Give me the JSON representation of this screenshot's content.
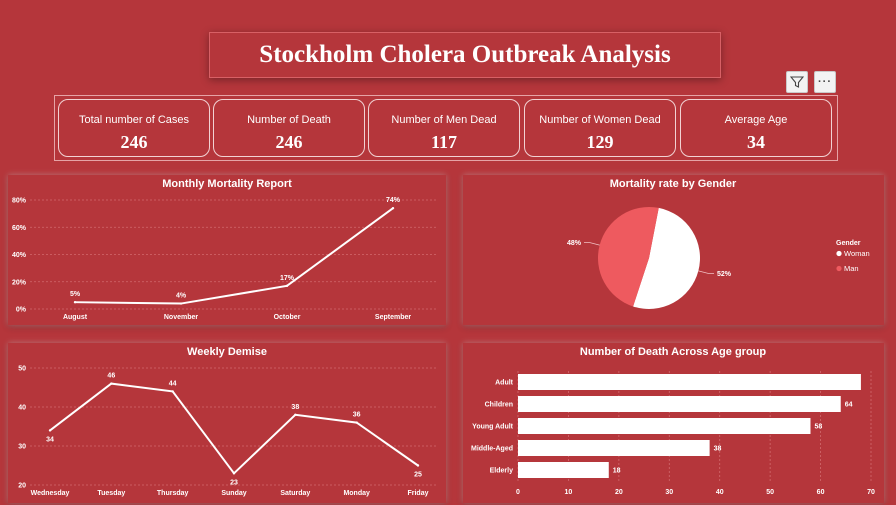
{
  "header": {
    "title": "Stockholm Cholera Outbreak Analysis"
  },
  "toolbar": {
    "filter_icon": "filter-icon",
    "more_icon": "more-options-icon",
    "more_label": "···"
  },
  "kpis": [
    {
      "label": "Total number of Cases",
      "value": "246"
    },
    {
      "label": "Number of Death",
      "value": "246"
    },
    {
      "label": "Number of Men Dead",
      "value": "117"
    },
    {
      "label": "Number of Women Dead",
      "value": "129"
    },
    {
      "label": "Average Age",
      "value": "34"
    }
  ],
  "colors": {
    "background": "#b5363b",
    "line": "#ffffff",
    "woman": "#ffffff",
    "man": "#ee5a5f"
  },
  "chart_data": [
    {
      "type": "line",
      "title": "Monthly Mortality Report",
      "categories": [
        "August",
        "November",
        "October",
        "September"
      ],
      "values": [
        5,
        4,
        17,
        74
      ],
      "labels": [
        "5%",
        "4%",
        "17%",
        "74%"
      ],
      "yticks": [
        "0%",
        "20%",
        "40%",
        "60%",
        "80%"
      ],
      "ylim": [
        0,
        80
      ],
      "grid": true
    },
    {
      "type": "pie",
      "title": "Mortality rate by Gender",
      "legend_title": "Gender",
      "legend_position": "right",
      "categories": [
        "Woman",
        "Man"
      ],
      "values": [
        52,
        48
      ],
      "labels": [
        "52%",
        "48%"
      ]
    },
    {
      "type": "line",
      "title": "Weekly Demise",
      "categories": [
        "Wednesday",
        "Tuesday",
        "Thursday",
        "Sunday",
        "Saturday",
        "Monday",
        "Friday"
      ],
      "values": [
        34,
        46,
        44,
        23,
        38,
        36,
        25
      ],
      "labels": [
        "34",
        "46",
        "44",
        "23",
        "38",
        "36",
        "25"
      ],
      "yticks": [
        "20",
        "30",
        "40",
        "50"
      ],
      "ylim": [
        20,
        50
      ],
      "grid": true
    },
    {
      "type": "bar",
      "orientation": "horizontal",
      "title": "Number of Death Across Age group",
      "categories": [
        "Adult",
        "Children",
        "Young Adult",
        "Middle-Aged",
        "Elderly"
      ],
      "values": [
        68,
        64,
        58,
        38,
        18
      ],
      "labels": [
        "",
        "64",
        "58",
        "38",
        "18"
      ],
      "xticks": [
        "0",
        "10",
        "20",
        "30",
        "40",
        "50",
        "60",
        "70"
      ],
      "xlim": [
        0,
        70
      ],
      "grid": true
    }
  ]
}
